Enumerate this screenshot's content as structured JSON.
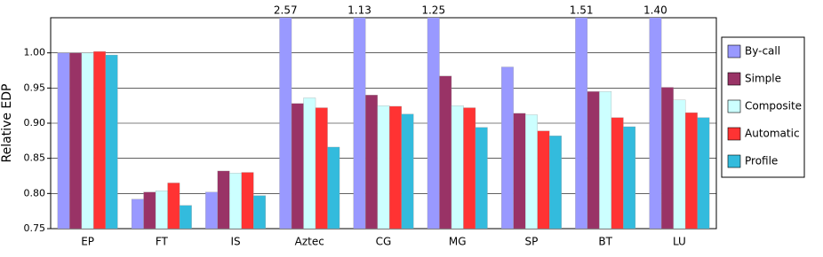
{
  "chart_data": {
    "type": "bar",
    "y_label": "Relative EDP",
    "categories": [
      "EP",
      "FT",
      "IS",
      "Aztec",
      "CG",
      "MG",
      "SP",
      "BT",
      "LU"
    ],
    "series": [
      {
        "name": "By-call",
        "color": "#9999ff",
        "values": [
          1.0,
          0.792,
          0.802,
          2.57,
          1.13,
          1.25,
          0.98,
          1.51,
          1.4
        ],
        "value_labels": [
          null,
          null,
          null,
          "2.57",
          "1.13",
          "1.25",
          null,
          "1.51",
          "1.40"
        ]
      },
      {
        "name": "Simple",
        "color": "#993366",
        "values": [
          1.0,
          0.802,
          0.832,
          0.928,
          0.94,
          0.967,
          0.914,
          0.945,
          0.951
        ]
      },
      {
        "name": "Composite",
        "color": "#ccffff",
        "values": [
          1.0,
          0.804,
          0.829,
          0.936,
          0.925,
          0.925,
          0.912,
          0.945,
          0.933
        ]
      },
      {
        "name": "Automatic",
        "color": "#ff3333",
        "values": [
          1.002,
          0.815,
          0.83,
          0.922,
          0.924,
          0.922,
          0.889,
          0.908,
          0.915
        ]
      },
      {
        "name": "Profile",
        "color": "#33bbdd",
        "values": [
          0.997,
          0.783,
          0.797,
          0.866,
          0.913,
          0.894,
          0.882,
          0.895,
          0.908
        ]
      }
    ],
    "ylim": [
      0.75,
      1.05
    ],
    "yticks": [
      0.75,
      {
        "value": 0.8,
        "label": "0.80"
      },
      0.85,
      {
        "value": 0.9,
        "label": "0.90"
      },
      0.95,
      {
        "value": 1.0,
        "label": "1.00"
      }
    ],
    "grid": true,
    "legend": "right"
  }
}
